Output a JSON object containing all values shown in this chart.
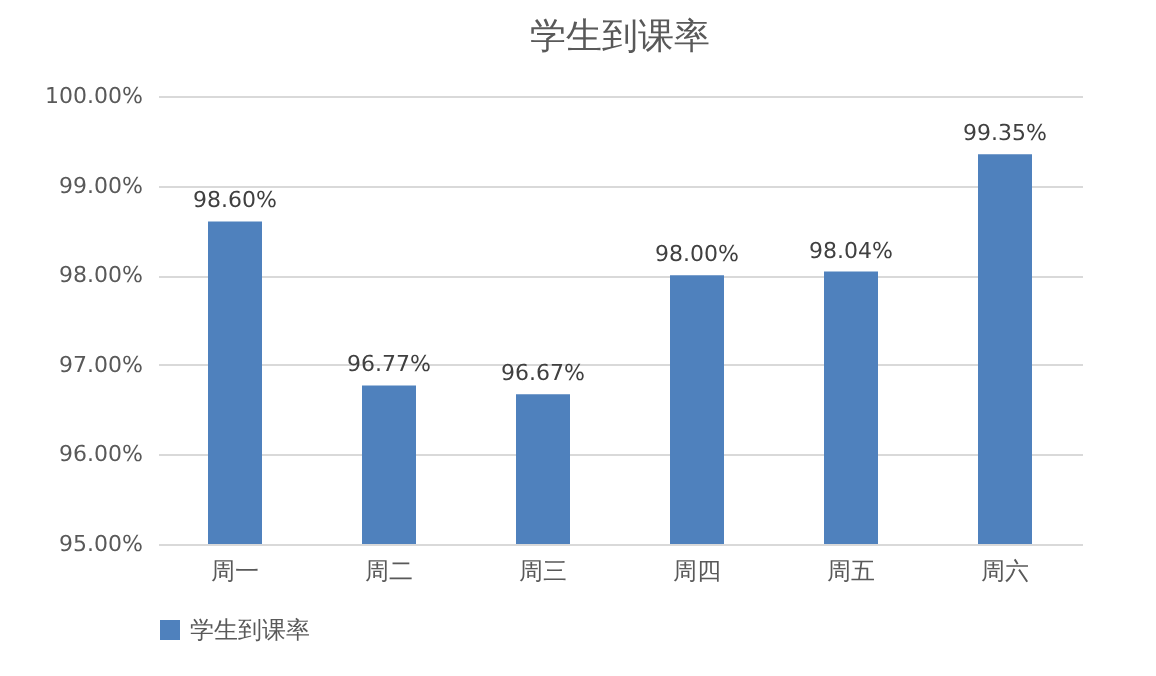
{
  "chart_data": {
    "type": "bar",
    "title": "学生到课率",
    "categories": [
      "周一",
      "周二",
      "周三",
      "周四",
      "周五",
      "周六"
    ],
    "series": [
      {
        "name": "学生到课率",
        "color": "#4f81bd",
        "values": [
          98.6,
          96.77,
          96.67,
          98.0,
          98.04,
          99.35
        ],
        "value_labels": [
          "98.60%",
          "96.77%",
          "96.67%",
          "98.00%",
          "98.04%",
          "99.35%"
        ]
      }
    ],
    "ylim": [
      95,
      100
    ],
    "yticks": [
      {
        "value": 95,
        "label": "95.00%"
      },
      {
        "value": 96,
        "label": "96.00%"
      },
      {
        "value": 97,
        "label": "97.00%"
      },
      {
        "value": 98,
        "label": "98.00%"
      },
      {
        "value": 99,
        "label": "99.00%"
      },
      {
        "value": 100,
        "label": "100.00%"
      }
    ],
    "grid": "y",
    "legend": "bottom"
  }
}
